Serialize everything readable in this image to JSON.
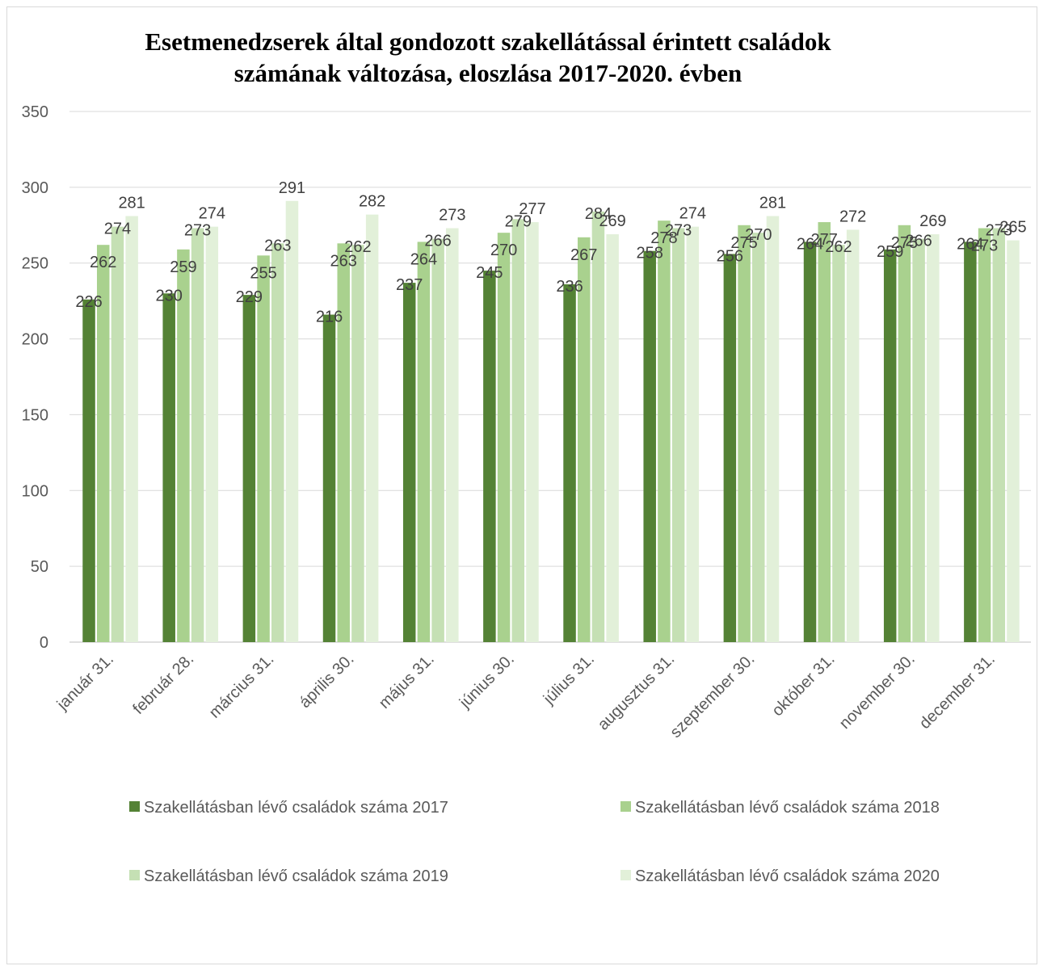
{
  "chart_data": {
    "type": "bar",
    "title": "Esetmenedzserek által gondozott szakellátással érintett családok számának változása, eloszlása 2017-2020. évben",
    "title_lines": [
      "Esetmenedzserek által gondozott szakellátással érintett családok",
      "számának változása, eloszlása 2017-2020. évben"
    ],
    "xlabel": "",
    "ylabel": "",
    "ylim": [
      0,
      350
    ],
    "yticks": [
      0,
      50,
      100,
      150,
      200,
      250,
      300,
      350
    ],
    "grid": true,
    "legend_position": "bottom",
    "categories": [
      "január 31.",
      "február 28.",
      "március 31.",
      "április 30.",
      "május 31.",
      "június 30.",
      "július 31.",
      "augusztus 31.",
      "szeptember 30.",
      "október 31.",
      "november 30.",
      "december 31."
    ],
    "series": [
      {
        "name": "Szakellátásban lévő családok száma 2017",
        "color": "#548235",
        "values": [
          226,
          230,
          229,
          216,
          237,
          245,
          236,
          258,
          256,
          264,
          259,
          264
        ]
      },
      {
        "name": "Szakellátásban lévő családok száma 2018",
        "color": "#a9d18e",
        "values": [
          262,
          259,
          255,
          263,
          264,
          270,
          267,
          278,
          275,
          277,
          275,
          273
        ]
      },
      {
        "name": "Szakellátásban lévő családok száma 2019",
        "color": "#c5e0b4",
        "values": [
          274,
          273,
          263,
          262,
          266,
          279,
          284,
          273,
          270,
          262,
          266,
          273
        ]
      },
      {
        "name": "Szakellátásban lévő családok száma 2020",
        "color": "#e2f0d9",
        "values": [
          281,
          274,
          291,
          282,
          273,
          277,
          269,
          274,
          281,
          272,
          269,
          265
        ]
      }
    ]
  }
}
